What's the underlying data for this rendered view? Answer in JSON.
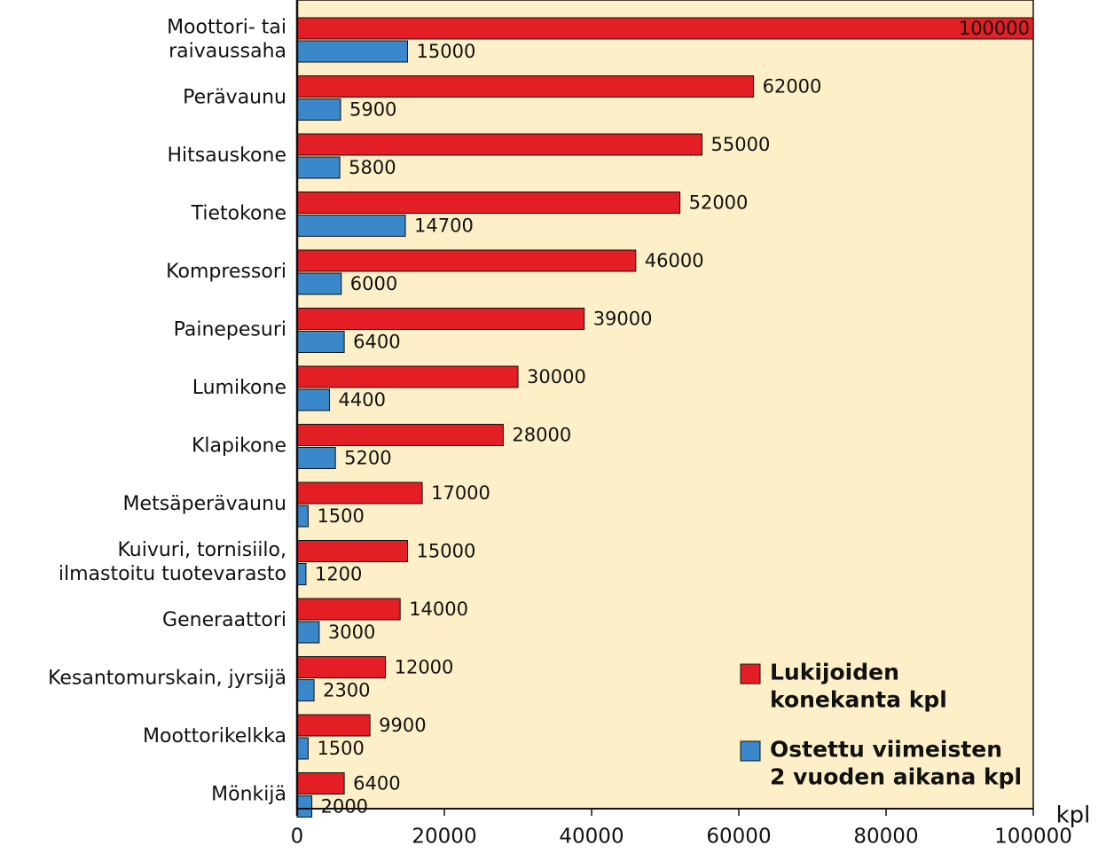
{
  "chart_data": {
    "type": "hbar",
    "categories": [
      "Moottori- tai\nraivaussaha",
      "Perävaunu",
      "Hitsauskone",
      "Tietokone",
      "Kompressori",
      "Painepesuri",
      "Lumikone",
      "Klapikone",
      "Metsäperävaunu",
      "Kuivuri, tornisiilo,\nilmastoitu tuotevarasto",
      "Generaattori",
      "Kesantomurskain, jyrsijä",
      "Moottorikelkka",
      "Mönkijä"
    ],
    "series": [
      {
        "name": "Lukijoiden\nkonekanta kpl",
        "color": "#e31e24",
        "values": [
          100000,
          62000,
          55000,
          52000,
          46000,
          39000,
          30000,
          28000,
          17000,
          15000,
          14000,
          12000,
          9900,
          6400
        ]
      },
      {
        "name": "Ostettu viimeisten\n2 vuoden aikana kpl",
        "color": "#3a87c9",
        "values": [
          15000,
          5900,
          5800,
          14700,
          6000,
          6400,
          4400,
          5200,
          1500,
          1200,
          3000,
          2300,
          1500,
          2000
        ]
      }
    ],
    "xlabel": "kpl",
    "xlim": [
      0,
      100000
    ],
    "xticks": [
      0,
      20000,
      40000,
      60000,
      80000,
      100000
    ],
    "legend": "lower right",
    "background": "#fdf0c8"
  }
}
